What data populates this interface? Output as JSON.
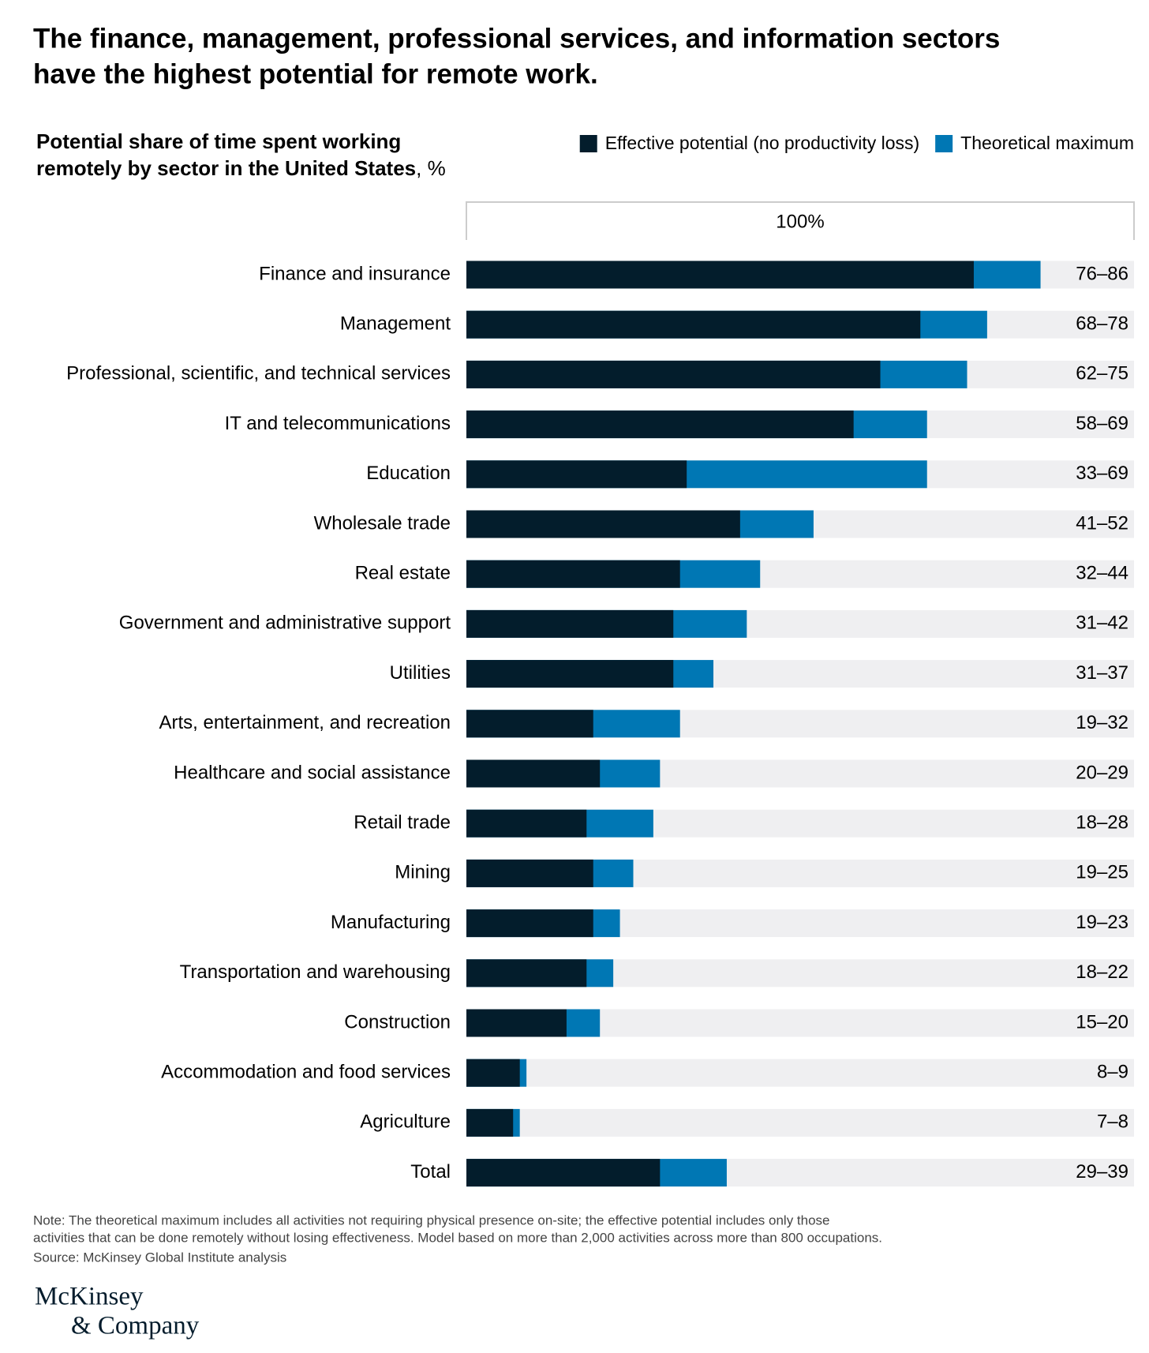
{
  "chart_data": {
    "type": "bar",
    "title": "The finance, management, professional services, and information sectors have the highest potential for remote work.",
    "subtitle": "Potential share of time spent working remotely by sector in the United States",
    "subtitle_unit": ", %",
    "scale_label": "100%",
    "xlim": [
      0,
      100
    ],
    "categories": [
      "Finance and insurance",
      "Management",
      "Professional, scientific, and technical services",
      "IT and telecommunications",
      "Education",
      "Wholesale trade",
      "Real estate",
      "Government and administrative support",
      "Utilities",
      "Arts, entertainment, and recreation",
      "Healthcare and social assistance",
      "Retail trade",
      "Mining",
      "Manufacturing",
      "Transportation and warehousing",
      "Construction",
      "Accommodation and food services",
      "Agriculture",
      "Total"
    ],
    "series": [
      {
        "name": "Effective potential (no productivity loss)",
        "color": "#031d2c",
        "values": [
          76,
          68,
          62,
          58,
          33,
          41,
          32,
          31,
          31,
          19,
          20,
          18,
          19,
          19,
          18,
          15,
          8,
          7,
          29
        ]
      },
      {
        "name": "Theoretical maximum",
        "color": "#0077b4",
        "values": [
          86,
          78,
          75,
          69,
          69,
          52,
          44,
          42,
          37,
          32,
          29,
          28,
          25,
          23,
          22,
          20,
          9,
          8,
          39
        ],
        "value_labels": [
          "76–86",
          "68–78",
          "62–75",
          "58–69",
          "33–69",
          "41–52",
          "32–44",
          "31–42",
          "31–37",
          "19–32",
          "20–29",
          "18–28",
          "19–25",
          "19–23",
          "18–22",
          "15–20",
          "8–9",
          "7–8",
          "29–39"
        ]
      }
    ],
    "note": "Note: The theoretical maximum includes all activities not requiring physical presence on-site; the effective potential includes only those activities that can be done remotely without losing effectiveness. Model based on more than 2,000 activities across more than 800 occupations.",
    "source": "Source: McKinsey Global Institute analysis",
    "logo": [
      "McKinsey",
      "& Company"
    ]
  }
}
